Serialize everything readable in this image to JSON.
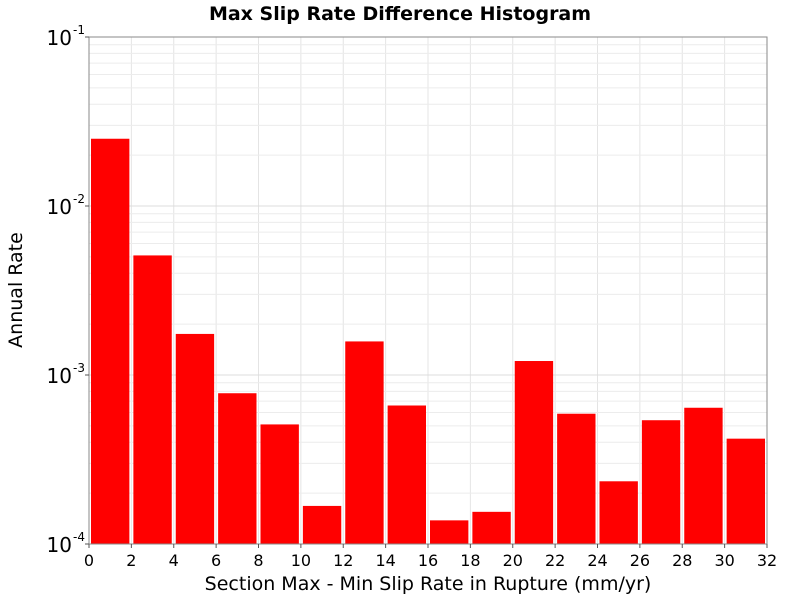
{
  "chart_data": {
    "type": "bar",
    "title": "Max Slip Rate Difference Histogram",
    "xlabel": "Section Max - Min Slip Rate in Rupture (mm/yr)",
    "ylabel": "Annual Rate",
    "xlim": [
      0,
      32
    ],
    "ylim": [
      0.0001,
      0.1
    ],
    "yscale": "log",
    "bin_width": 2,
    "x_ticks": [
      0,
      2,
      4,
      6,
      8,
      10,
      12,
      14,
      16,
      18,
      20,
      22,
      24,
      26,
      28,
      30,
      32
    ],
    "y_ticks": [
      {
        "base": "10",
        "exp": "-4",
        "value": 0.0001
      },
      {
        "base": "10",
        "exp": "-3",
        "value": 0.001
      },
      {
        "base": "10",
        "exp": "-2",
        "value": 0.01
      },
      {
        "base": "10",
        "exp": "-1",
        "value": 0.1
      }
    ],
    "grid": true,
    "bar_color": "#ff0000",
    "bins": [
      {
        "x": 1,
        "value": 0.025
      },
      {
        "x": 3,
        "value": 0.0051
      },
      {
        "x": 5,
        "value": 0.00175
      },
      {
        "x": 7,
        "value": 0.00078
      },
      {
        "x": 9,
        "value": 0.00051
      },
      {
        "x": 11,
        "value": 0.000168
      },
      {
        "x": 13,
        "value": 0.00158
      },
      {
        "x": 15,
        "value": 0.00066
      },
      {
        "x": 17,
        "value": 0.000138
      },
      {
        "x": 19,
        "value": 0.000155
      },
      {
        "x": 21,
        "value": 0.00121
      },
      {
        "x": 23,
        "value": 0.00059
      },
      {
        "x": 25,
        "value": 0.000235
      },
      {
        "x": 27,
        "value": 0.00054
      },
      {
        "x": 29,
        "value": 0.00064
      },
      {
        "x": 31,
        "value": 0.00042
      }
    ]
  }
}
